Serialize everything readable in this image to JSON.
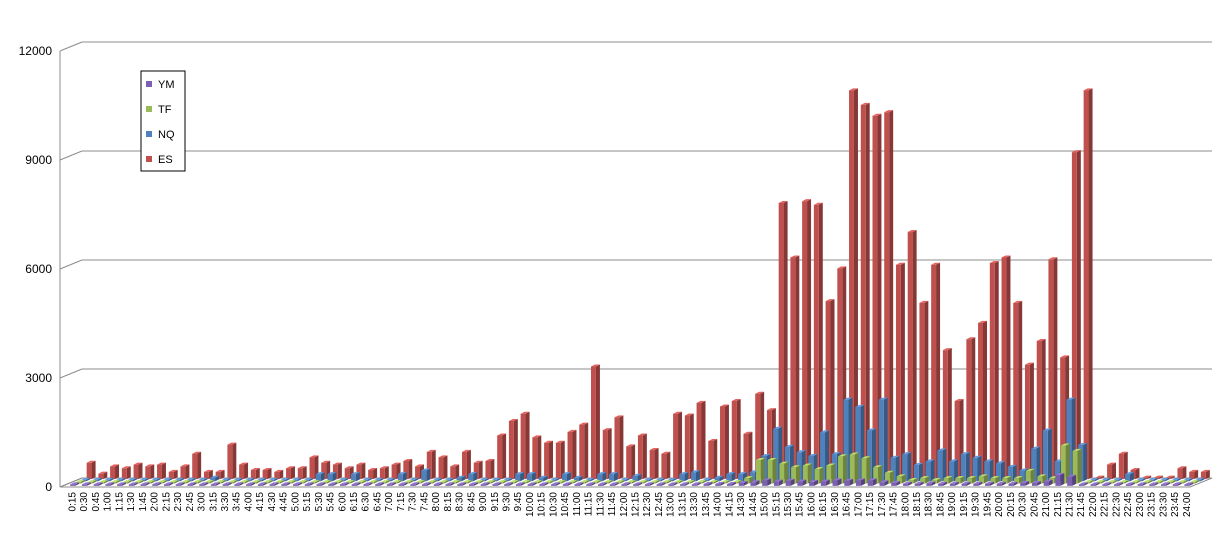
{
  "chart_data": {
    "type": "bar",
    "title": "",
    "xlabel": "",
    "ylabel": "",
    "ylim": [
      0,
      12000
    ],
    "y_ticks": [
      0,
      3000,
      6000,
      9000,
      12000
    ],
    "grid": true,
    "legend_position": "top-left",
    "categories": [
      "0:15",
      "0:30",
      "0:45",
      "1:00",
      "1:15",
      "1:30",
      "1:45",
      "2:00",
      "2:15",
      "2:30",
      "2:45",
      "3:00",
      "3:15",
      "3:30",
      "3:45",
      "4:00",
      "4:15",
      "4:30",
      "4:45",
      "5:00",
      "5:15",
      "5:30",
      "5:45",
      "6:00",
      "6:15",
      "6:30",
      "6:45",
      "7:00",
      "7:15",
      "7:30",
      "7:45",
      "8:00",
      "8:15",
      "8:30",
      "8:45",
      "9:00",
      "9:15",
      "9:30",
      "9:45",
      "10:00",
      "10:15",
      "10:30",
      "10:45",
      "11:00",
      "11:15",
      "11:30",
      "11:45",
      "12:00",
      "12:15",
      "12:30",
      "12:45",
      "13:00",
      "13:15",
      "13:30",
      "13:45",
      "14:00",
      "14:15",
      "14:30",
      "14:45",
      "15:00",
      "15:15",
      "15:30",
      "15:45",
      "16:00",
      "16:15",
      "16:30",
      "16:45",
      "17:00",
      "17:15",
      "17:30",
      "17:45",
      "18:00",
      "18:15",
      "18:30",
      "18:45",
      "19:00",
      "19:15",
      "19:30",
      "19:45",
      "20:00",
      "20:15",
      "20:30",
      "20:45",
      "21:00",
      "21:15",
      "21:30",
      "21:45",
      "22:00",
      "22:15",
      "22:30",
      "22:45",
      "23:00",
      "23:15",
      "23:30",
      "23:45",
      "24:00"
    ],
    "series": [
      {
        "name": "YM",
        "color": "#7b5fb0",
        "values": [
          0,
          0,
          0,
          0,
          0,
          0,
          0,
          0,
          0,
          0,
          0,
          0,
          0,
          0,
          0,
          0,
          0,
          0,
          0,
          0,
          0,
          0,
          0,
          0,
          0,
          0,
          0,
          0,
          0,
          0,
          0,
          0,
          0,
          0,
          0,
          0,
          0,
          0,
          0,
          0,
          0,
          0,
          0,
          0,
          0,
          0,
          0,
          0,
          0,
          0,
          0,
          0,
          0,
          0,
          50,
          50,
          50,
          80,
          100,
          150,
          120,
          140,
          120,
          110,
          120,
          150,
          140,
          150,
          150,
          100,
          80,
          60,
          60,
          70,
          60,
          60,
          60,
          60,
          60,
          60,
          60,
          80,
          80,
          120,
          300,
          250,
          0,
          0,
          0,
          0,
          0,
          0,
          0,
          0,
          0,
          0
        ]
      },
      {
        "name": "TF",
        "color": "#9bbb59",
        "values": [
          0,
          0,
          0,
          0,
          0,
          0,
          0,
          0,
          0,
          0,
          0,
          0,
          0,
          0,
          0,
          0,
          0,
          0,
          0,
          0,
          0,
          0,
          0,
          0,
          0,
          0,
          0,
          0,
          0,
          0,
          0,
          0,
          0,
          0,
          0,
          0,
          0,
          0,
          0,
          0,
          0,
          0,
          0,
          0,
          0,
          0,
          0,
          0,
          0,
          0,
          0,
          0,
          0,
          0,
          0,
          0,
          0,
          150,
          650,
          650,
          550,
          450,
          500,
          400,
          500,
          750,
          800,
          700,
          450,
          300,
          200,
          100,
          150,
          100,
          150,
          150,
          150,
          200,
          150,
          150,
          150,
          350,
          200,
          150,
          1050,
          900,
          0,
          0,
          0,
          0,
          0,
          0,
          0,
          0,
          0,
          0
        ]
      },
      {
        "name": "NQ",
        "color": "#4f81bd",
        "values": [
          0,
          0,
          0,
          0,
          0,
          0,
          0,
          0,
          0,
          0,
          0,
          100,
          0,
          0,
          0,
          0,
          0,
          0,
          0,
          0,
          200,
          200,
          0,
          200,
          0,
          0,
          0,
          200,
          0,
          300,
          0,
          0,
          100,
          200,
          0,
          0,
          0,
          200,
          200,
          100,
          0,
          200,
          100,
          0,
          200,
          200,
          0,
          150,
          0,
          0,
          0,
          200,
          250,
          0,
          100,
          200,
          200,
          250,
          700,
          1450,
          950,
          800,
          700,
          1350,
          750,
          2250,
          2050,
          1400,
          2250,
          650,
          750,
          450,
          550,
          850,
          550,
          750,
          650,
          550,
          500,
          400,
          300,
          900,
          1400,
          550,
          2250,
          1000,
          0,
          0,
          0,
          200,
          0,
          0,
          0,
          0,
          0,
          0
        ]
      },
      {
        "name": "ES",
        "color": "#c0504d",
        "values": [
          450,
          150,
          350,
          300,
          400,
          350,
          400,
          200,
          350,
          700,
          200,
          200,
          950,
          400,
          250,
          250,
          200,
          300,
          300,
          600,
          450,
          400,
          300,
          400,
          250,
          300,
          400,
          500,
          350,
          750,
          600,
          350,
          750,
          450,
          500,
          1200,
          1600,
          1800,
          1150,
          1000,
          1000,
          1300,
          1500,
          3100,
          1350,
          1700,
          900,
          1200,
          800,
          700,
          1800,
          1750,
          2100,
          1050,
          2000,
          2150,
          1250,
          2350,
          1900,
          7600,
          6100,
          7650,
          7550,
          4900,
          5800,
          10700,
          10300,
          10000,
          10100,
          5900,
          6800,
          4850,
          5900,
          3550,
          2150,
          3850,
          4300,
          5950,
          6100,
          4850,
          3150,
          3800,
          6050,
          3350,
          9000,
          10700,
          0,
          400,
          700,
          250,
          0,
          0,
          0,
          300,
          200,
          200
        ]
      }
    ]
  }
}
